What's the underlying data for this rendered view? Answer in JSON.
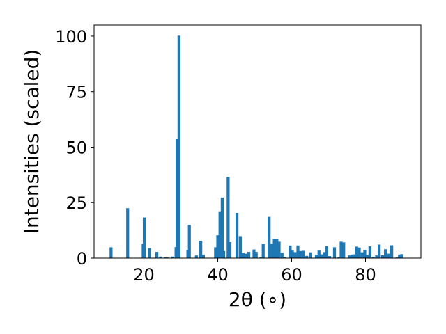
{
  "chart_data": {
    "type": "bar",
    "title": "",
    "xlabel": "2θ (∘)",
    "ylabel": "Intensities (scaled)",
    "xlim": [
      6.5,
      95
    ],
    "ylim": [
      0,
      105
    ],
    "xticks": [
      20,
      40,
      60,
      80
    ],
    "yticks": [
      0,
      25,
      50,
      75,
      100
    ],
    "grid": false,
    "bar_color": "#1f77b4",
    "bar_width": 0.8,
    "x": [
      11.1,
      15.6,
      19.8,
      20.1,
      21.5,
      23.5,
      24.5,
      25.8,
      26.3,
      27.8,
      28.7,
      29.0,
      29.5,
      31.9,
      32.3,
      34.2,
      35.4,
      36.1,
      39.4,
      40.0,
      40.6,
      41.2,
      41.6,
      42.8,
      43.3,
      45.2,
      46.1,
      46.9,
      47.6,
      48.4,
      49.8,
      50.4,
      51.7,
      52.3,
      53.9,
      54.6,
      55.3,
      56.0,
      56.6,
      57.4,
      58.1,
      59.6,
      60.2,
      60.9,
      61.7,
      62.4,
      63.2,
      64.1,
      65.1,
      66.7,
      67.4,
      68.1,
      68.8,
      69.5,
      70.3,
      71.6,
      72.8,
      73.4,
      74.1,
      75.6,
      76.3,
      76.9,
      77.6,
      78.3,
      79.1,
      79.8,
      80.5,
      81.2,
      82.1,
      83.0,
      83.7,
      84.6,
      85.4,
      86.3,
      87.1,
      88.5,
      89.2,
      89.8
    ],
    "values": [
      4.9,
      22.5,
      6.5,
      18.3,
      4.5,
      2.8,
      0.7,
      0.3,
      0.3,
      0.7,
      5.0,
      53.6,
      100.2,
      3.7,
      15.0,
      1.2,
      7.8,
      1.6,
      4.9,
      10.3,
      21.1,
      27.3,
      3.2,
      36.6,
      7.2,
      20.4,
      9.9,
      2.3,
      2.0,
      2.8,
      3.9,
      2.8,
      0.5,
      6.5,
      18.6,
      6.6,
      8.6,
      8.6,
      7.4,
      2.5,
      0.6,
      5.7,
      3.4,
      2.7,
      5.7,
      3.2,
      3.3,
      1.0,
      2.6,
      1.5,
      3.4,
      1.7,
      2.7,
      5.3,
      0.9,
      4.9,
      0.4,
      7.4,
      7.1,
      1.2,
      1.6,
      1.7,
      5.2,
      4.8,
      2.6,
      3.7,
      1.4,
      5.3,
      0.6,
      1.2,
      6.1,
      1.3,
      4.0,
      2.0,
      5.8,
      0.4,
      1.6,
      1.8
    ]
  }
}
